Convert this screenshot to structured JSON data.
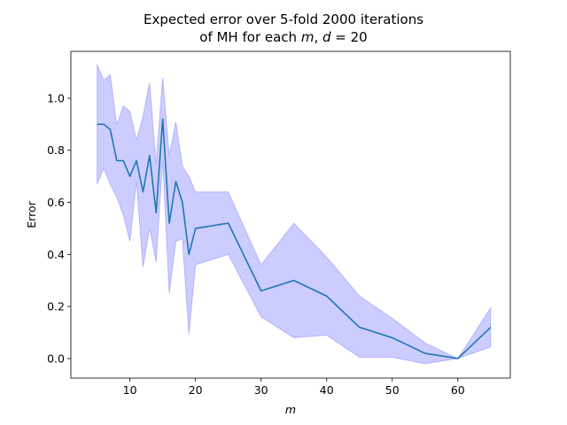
{
  "chart_data": {
    "type": "line",
    "title_line1": "Expected error over 5-fold 2000 iterations",
    "title_line2_prefix": "of MH for each ",
    "title_line2_m": "m",
    "title_line2_mid": ", ",
    "title_line2_d": "d",
    "title_line2_suffix": " = 20",
    "xlabel": "m",
    "ylabel": "Error",
    "xlim": [
      1.0,
      68.0
    ],
    "ylim": [
      -0.075,
      1.18
    ],
    "xticks": [
      10,
      20,
      30,
      40,
      50,
      60
    ],
    "yticks": [
      0.0,
      0.2,
      0.4,
      0.6,
      0.8,
      1.0
    ],
    "ytick_labels": [
      "0.0",
      "0.2",
      "0.4",
      "0.6",
      "0.8",
      "1.0"
    ],
    "line_color": "#1f77b4",
    "band_color": "#0000ff",
    "band_opacity": 0.2,
    "series": [
      {
        "x": [
          5,
          6,
          7,
          8,
          9,
          10,
          11,
          12,
          13,
          14,
          15,
          16,
          17,
          18,
          19,
          20,
          25,
          30,
          35,
          40,
          45,
          50,
          55,
          60,
          65
        ],
        "y": [
          0.9,
          0.9,
          0.88,
          0.76,
          0.76,
          0.7,
          0.76,
          0.64,
          0.78,
          0.56,
          0.92,
          0.52,
          0.68,
          0.6,
          0.4,
          0.5,
          0.52,
          0.26,
          0.3,
          0.24,
          0.12,
          0.08,
          0.02,
          0.0,
          0.12
        ],
        "lower": [
          0.67,
          0.73,
          0.67,
          0.62,
          0.55,
          0.45,
          0.68,
          0.35,
          0.5,
          0.37,
          0.76,
          0.25,
          0.45,
          0.46,
          0.09,
          0.36,
          0.4,
          0.16,
          0.08,
          0.09,
          0.005,
          0.005,
          -0.02,
          0.0,
          0.045
        ],
        "upper": [
          1.13,
          1.07,
          1.09,
          0.9,
          0.97,
          0.95,
          0.84,
          0.93,
          1.06,
          0.75,
          1.08,
          0.78,
          0.91,
          0.74,
          0.7,
          0.64,
          0.64,
          0.36,
          0.52,
          0.39,
          0.24,
          0.155,
          0.06,
          0.0,
          0.195
        ]
      }
    ]
  }
}
